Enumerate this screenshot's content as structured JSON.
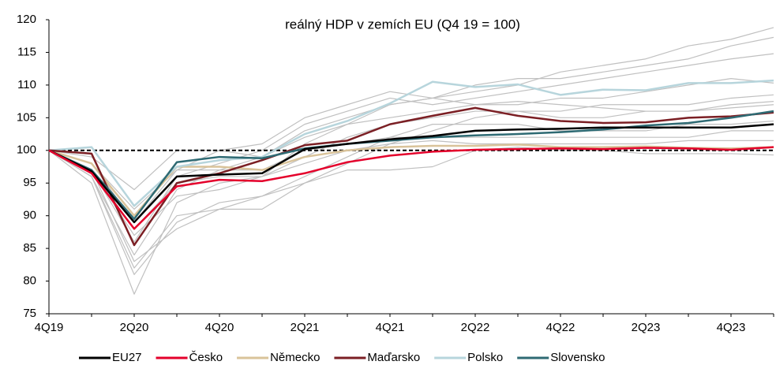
{
  "chart_data": {
    "type": "line",
    "title": "reálný HDP v zemích EU (Q4 19 = 100)",
    "categories": [
      "4Q19",
      null,
      "2Q20",
      null,
      "4Q20",
      null,
      "2Q21",
      null,
      "4Q21",
      null,
      "2Q22",
      null,
      "4Q22",
      null,
      "2Q23",
      null,
      "4Q23",
      null
    ],
    "ylim": [
      75,
      120
    ],
    "yticks": [
      75,
      80,
      85,
      90,
      95,
      100,
      105,
      110,
      115,
      120
    ],
    "reference_line": 100,
    "series": [
      {
        "color": "#c0c0c0",
        "values": [
          100,
          95,
          78,
          92,
          95,
          96,
          101,
          104,
          107,
          108,
          109,
          110,
          112,
          113,
          114,
          116,
          117,
          118.8
        ]
      },
      {
        "color": "#c0c0c0",
        "values": [
          100,
          96,
          84,
          94,
          97,
          99,
          103,
          105,
          107,
          108,
          110,
          111,
          111,
          112,
          113,
          114,
          116,
          117.3
        ]
      },
      {
        "color": "#c0c0c0",
        "values": [
          100,
          97,
          86,
          96,
          98,
          100,
          104,
          106,
          108,
          107,
          108,
          109,
          110,
          111,
          112,
          113,
          114,
          114.8
        ]
      },
      {
        "color": "#c0c0c0",
        "values": [
          100,
          98,
          89,
          97,
          100,
          101,
          105,
          107,
          109,
          108,
          107,
          107,
          108,
          108,
          109,
          110,
          111,
          110.3
        ]
      },
      {
        "color": "#c0c0c0",
        "values": [
          100,
          96,
          82,
          90,
          91,
          91,
          95,
          98,
          101,
          103,
          105,
          106,
          106,
          107,
          107,
          107,
          108,
          108.5
        ]
      },
      {
        "color": "#c0c0c0",
        "values": [
          100,
          97,
          87,
          93,
          94,
          96,
          99,
          102,
          104,
          105,
          106,
          106,
          105,
          105,
          106,
          106,
          107,
          107.5
        ]
      },
      {
        "color": "#c0c0c0",
        "values": [
          100,
          97,
          83,
          88,
          91,
          93,
          96,
          99,
          102,
          104,
          104,
          104,
          103,
          103,
          103,
          104,
          104,
          104.5
        ]
      },
      {
        "color": "#c0c0c0",
        "values": [
          100,
          98,
          91,
          97,
          97,
          97,
          100,
          101,
          102,
          102,
          102,
          102,
          102,
          102,
          102,
          102,
          103,
          103
        ]
      },
      {
        "color": "#c0c0c0",
        "values": [
          100,
          97,
          88,
          95,
          96,
          96,
          98,
          100,
          101,
          101.5,
          101,
          101,
          101,
          101,
          101,
          101.5,
          101.5,
          101.5
        ]
      },
      {
        "color": "#c0c0c0",
        "values": [
          100,
          96,
          81,
          89,
          92,
          93,
          95,
          97,
          97,
          97.5,
          100,
          100.5,
          100,
          100,
          99.5,
          99.5,
          99.5,
          99.3
        ]
      },
      {
        "color": "#c0c0c0",
        "values": [
          100,
          99,
          94,
          100,
          100,
          99,
          102,
          104,
          105,
          106,
          107,
          107.5,
          107,
          106.5,
          106,
          106,
          106.5,
          107
        ]
      },
      {
        "name": "Německo",
        "color": "#d9c39a",
        "values": [
          100,
          98,
          90,
          97.5,
          97.5,
          97,
          99,
          100,
          100.5,
          100.7,
          100.7,
          100.9,
          100.5,
          100.5,
          100.6,
          100.4,
          100.3,
          100.5
        ]
      },
      {
        "name": "Polsko",
        "color": "#b7d5dc",
        "values": [
          100,
          100.5,
          91.5,
          97.5,
          98.5,
          99,
          102.5,
          104.5,
          107.2,
          110.5,
          109.7,
          110.1,
          108.5,
          109.3,
          109.2,
          110.3,
          110.3,
          110.7
        ]
      },
      {
        "name": "Maďarsko",
        "color": "#7b1f24",
        "values": [
          100,
          99.5,
          85.5,
          95,
          96.5,
          98.5,
          100.8,
          101.5,
          104,
          105.3,
          106.5,
          105.3,
          104.5,
          104.2,
          104.3,
          105,
          105.2,
          105.8
        ]
      },
      {
        "name": "Slovensko",
        "color": "#2e6a73",
        "values": [
          100,
          97,
          89.5,
          98.2,
          99,
          98.8,
          100.3,
          101,
          101.5,
          102,
          102.3,
          102.5,
          102.8,
          103.2,
          103.8,
          104.2,
          105,
          106
        ]
      },
      {
        "name": "EU27",
        "color": "#000000",
        "values": [
          100,
          96.8,
          89,
          96,
          96.3,
          96.5,
          100.2,
          101,
          101.7,
          102.2,
          103,
          103.2,
          103.3,
          103.5,
          103.5,
          103.5,
          103.5,
          104
        ]
      },
      {
        "name": "Česko",
        "color": "#e4002b",
        "values": [
          100,
          96.5,
          88,
          94.5,
          95.5,
          95.3,
          96.5,
          98.2,
          99.2,
          99.8,
          100.1,
          100.2,
          100.3,
          100.2,
          100.4,
          100.3,
          100.1,
          100.5
        ]
      }
    ],
    "legend_order": [
      "EU27",
      "Česko",
      "Německo",
      "Maďarsko",
      "Polsko",
      "Slovensko"
    ]
  }
}
